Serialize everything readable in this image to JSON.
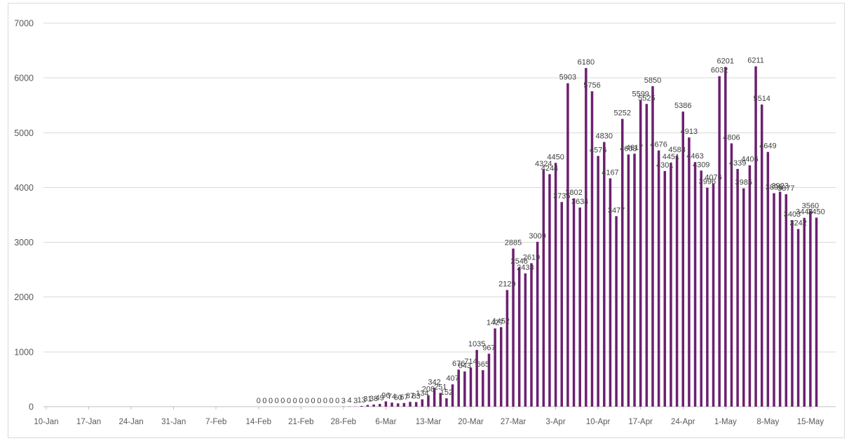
{
  "chart_data": {
    "type": "bar",
    "title": "",
    "legend": "none",
    "grid": true,
    "ylim": [
      0,
      7000
    ],
    "y_ticks": [
      0,
      1000,
      2000,
      3000,
      4000,
      5000,
      6000,
      7000
    ],
    "x_tick_labels": [
      "10-Jan",
      "17-Jan",
      "24-Jan",
      "31-Jan",
      "7-Feb",
      "14-Feb",
      "21-Feb",
      "28-Feb",
      "6-Mar",
      "13-Mar",
      "20-Mar",
      "27-Mar",
      "3-Apr",
      "10-Apr",
      "17-Apr",
      "24-Apr",
      "1-May",
      "8-May",
      "15-May"
    ],
    "bar_color": "#6C2070",
    "data_label_color": "#404040",
    "axis_label_color": "#595959",
    "gridline_color": "#D9D9D9",
    "axis_line_color": "#BFBFBF",
    "border_color": "#D9D9D9",
    "data_labels_position": "outside-end",
    "categories": [
      "14-Feb",
      "15-Feb",
      "16-Feb",
      "17-Feb",
      "18-Feb",
      "19-Feb",
      "20-Feb",
      "21-Feb",
      "22-Feb",
      "23-Feb",
      "24-Feb",
      "25-Feb",
      "26-Feb",
      "27-Feb",
      "28-Feb",
      "29-Feb",
      "1-Mar",
      "2-Mar",
      "3-Mar",
      "4-Mar",
      "5-Mar",
      "6-Mar",
      "7-Mar",
      "8-Mar",
      "9-Mar",
      "10-Mar",
      "11-Mar",
      "12-Mar",
      "13-Mar",
      "14-Mar",
      "15-Mar",
      "16-Mar",
      "17-Mar",
      "18-Mar",
      "19-Mar",
      "20-Mar",
      "21-Mar",
      "22-Mar",
      "23-Mar",
      "24-Mar",
      "25-Mar",
      "26-Mar",
      "27-Mar",
      "28-Mar",
      "29-Mar",
      "30-Mar",
      "31-Mar",
      "1-Apr",
      "2-Apr",
      "3-Apr",
      "4-Apr",
      "5-Apr",
      "6-Apr",
      "7-Apr",
      "8-Apr",
      "9-Apr",
      "10-Apr",
      "11-Apr",
      "12-Apr",
      "13-Apr",
      "14-Apr",
      "15-Apr",
      "16-Apr",
      "17-Apr",
      "18-Apr",
      "19-Apr",
      "20-Apr",
      "21-Apr",
      "22-Apr",
      "23-Apr",
      "24-Apr",
      "25-Apr",
      "26-Apr",
      "27-Apr",
      "28-Apr",
      "29-Apr",
      "30-Apr",
      "1-May",
      "2-May",
      "3-May",
      "4-May",
      "5-May",
      "6-May",
      "7-May",
      "8-May",
      "9-May",
      "10-May",
      "11-May",
      "12-May",
      "13-May",
      "14-May",
      "15-May",
      "16-May"
    ],
    "values": [
      0,
      0,
      0,
      0,
      0,
      0,
      0,
      0,
      0,
      0,
      0,
      0,
      0,
      0,
      3,
      4,
      3,
      13,
      31,
      38,
      49,
      96,
      74,
      60,
      67,
      87,
      83,
      134,
      208,
      342,
      251,
      152,
      407,
      676,
      643,
      714,
      1035,
      665,
      967,
      1427,
      1452,
      2129,
      2885,
      2546,
      2433,
      2619,
      3009,
      4324,
      4244,
      4450,
      3735,
      5903,
      3802,
      3634,
      6180,
      5756,
      4576,
      4830,
      4167,
      3477,
      5252,
      4603,
      4617,
      5599,
      5525,
      5850,
      4676,
      4301,
      4451,
      4583,
      5386,
      4913,
      4463,
      4309,
      3996,
      4076,
      6032,
      6201,
      4806,
      4339,
      3985,
      4406,
      6211,
      5514,
      4649,
      3896,
      3923,
      3877,
      3403,
      3242,
      3446,
      3560,
      3450
    ]
  }
}
